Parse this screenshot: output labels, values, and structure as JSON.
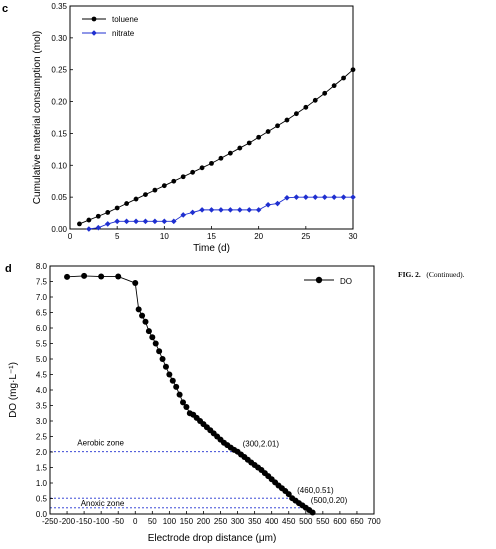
{
  "caption": {
    "label": "FIG. 2.",
    "text": "(Continued)."
  },
  "chart_data": [
    {
      "panel": "c",
      "type": "line",
      "xlabel": "Time (d)",
      "ylabel": "Cumulative material consumption (mol)",
      "xlim": [
        0,
        30
      ],
      "ylim": [
        0,
        0.35
      ],
      "xticks": [
        0,
        5,
        10,
        15,
        20,
        25,
        30
      ],
      "yticks": [
        0.0,
        0.05,
        0.1,
        0.15,
        0.2,
        0.25,
        0.3,
        0.35
      ],
      "ytick_labels": [
        "0.00",
        "0.05",
        "0.10",
        "0.15",
        "0.20",
        "0.25",
        "0.30",
        "0.35"
      ],
      "legend_position": "top-left",
      "series": [
        {
          "name": "toluene",
          "color": "#000000",
          "marker": "circle",
          "x": [
            1,
            2,
            3,
            4,
            5,
            6,
            7,
            8,
            9,
            10,
            11,
            12,
            13,
            14,
            15,
            16,
            17,
            18,
            19,
            20,
            21,
            22,
            23,
            24,
            25,
            26,
            27,
            28,
            29,
            30
          ],
          "y": [
            0.008,
            0.014,
            0.02,
            0.026,
            0.033,
            0.04,
            0.047,
            0.054,
            0.061,
            0.068,
            0.075,
            0.082,
            0.089,
            0.096,
            0.103,
            0.111,
            0.119,
            0.127,
            0.135,
            0.144,
            0.153,
            0.162,
            0.171,
            0.181,
            0.191,
            0.202,
            0.213,
            0.225,
            0.237,
            0.25
          ]
        },
        {
          "name": "nitrate",
          "color": "#1f2fd0",
          "marker": "diamond",
          "x": [
            2,
            3,
            4,
            5,
            6,
            7,
            8,
            9,
            10,
            11,
            12,
            13,
            14,
            15,
            16,
            17,
            18,
            19,
            20,
            21,
            22,
            23,
            24,
            25,
            26,
            27,
            28,
            29,
            30
          ],
          "y": [
            0.0,
            0.002,
            0.008,
            0.012,
            0.012,
            0.012,
            0.012,
            0.012,
            0.012,
            0.012,
            0.022,
            0.026,
            0.03,
            0.03,
            0.03,
            0.03,
            0.03,
            0.03,
            0.03,
            0.038,
            0.04,
            0.049,
            0.05,
            0.05,
            0.05,
            0.05,
            0.05,
            0.05,
            0.05
          ]
        }
      ]
    },
    {
      "panel": "d",
      "type": "line",
      "xlabel": "Electrode drop distance (μm)",
      "ylabel": "DO (mg·L⁻¹)",
      "xlim": [
        -250,
        700
      ],
      "ylim": [
        0,
        8
      ],
      "xticks": [
        -250,
        -200,
        -150,
        -100,
        -50,
        0,
        50,
        100,
        150,
        200,
        250,
        300,
        350,
        400,
        450,
        500,
        550,
        600,
        650,
        700
      ],
      "yticks": [
        0.0,
        0.5,
        1.0,
        1.5,
        2.0,
        2.5,
        3.0,
        3.5,
        4.0,
        4.5,
        5.0,
        5.5,
        6.0,
        6.5,
        7.0,
        7.5,
        8.0
      ],
      "ytick_labels": [
        "0.0",
        "0.5",
        "1.0",
        "1.5",
        "2.0",
        "2.5",
        "3.0",
        "3.5",
        "4.0",
        "4.5",
        "5.0",
        "5.5",
        "6.0",
        "6.5",
        "7.0",
        "7.5",
        "8.0"
      ],
      "legend_position": "top-right",
      "series": [
        {
          "name": "DO",
          "color": "#000000",
          "marker": "circle",
          "x": [
            -200,
            -150,
            -100,
            -50,
            0,
            10,
            20,
            30,
            40,
            50,
            60,
            70,
            80,
            90,
            100,
            110,
            120,
            130,
            140,
            150,
            160,
            170,
            180,
            190,
            200,
            210,
            220,
            230,
            240,
            250,
            260,
            270,
            280,
            290,
            300,
            310,
            320,
            330,
            340,
            350,
            360,
            370,
            380,
            390,
            400,
            410,
            420,
            430,
            440,
            450,
            460,
            470,
            480,
            490,
            500,
            510,
            520
          ],
          "y": [
            7.65,
            7.68,
            7.66,
            7.66,
            7.45,
            6.6,
            6.4,
            6.2,
            5.9,
            5.7,
            5.5,
            5.25,
            5.0,
            4.75,
            4.5,
            4.3,
            4.1,
            3.85,
            3.6,
            3.45,
            3.25,
            3.2,
            3.1,
            3.0,
            2.9,
            2.8,
            2.7,
            2.6,
            2.5,
            2.4,
            2.3,
            2.22,
            2.14,
            2.07,
            2.01,
            1.92,
            1.84,
            1.75,
            1.66,
            1.58,
            1.5,
            1.42,
            1.32,
            1.22,
            1.12,
            1.02,
            0.92,
            0.83,
            0.74,
            0.64,
            0.51,
            0.43,
            0.35,
            0.28,
            0.2,
            0.13,
            0.05
          ]
        }
      ],
      "reference_lines": [
        {
          "y": 2.01,
          "label": "Aerobic zone"
        },
        {
          "y": 0.51,
          "label": ""
        },
        {
          "y": 0.2,
          "label": "Anoxic zone"
        }
      ],
      "annotations": [
        {
          "x": 300,
          "y": 2.01,
          "text": "(300,2.01)"
        },
        {
          "x": 460,
          "y": 0.51,
          "text": "(460,0.51)"
        },
        {
          "x": 500,
          "y": 0.2,
          "text": "(500,0.20)"
        }
      ]
    }
  ]
}
